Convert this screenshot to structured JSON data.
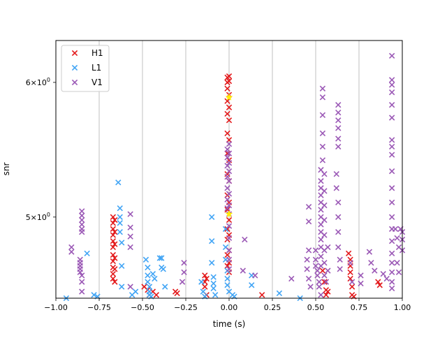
{
  "chart_data": {
    "type": "scatter",
    "xlabel": "time (s)",
    "ylabel": "snr",
    "xlim": [
      -1.0,
      1.0
    ],
    "ylim": [
      4.48,
      6.35
    ],
    "yscale": "log",
    "grid": "vertical",
    "legend_position": "upper-left",
    "x_ticks": [
      -1.0,
      -0.75,
      -0.5,
      -0.25,
      0.0,
      0.25,
      0.5,
      0.75,
      1.0
    ],
    "x_tick_labels": [
      "−1.00",
      "−0.75",
      "−0.50",
      "−0.25",
      "0.00",
      "0.25",
      "0.50",
      "0.75",
      "1.00"
    ],
    "y_ticks": [
      {
        "value": 6.0,
        "base": "6",
        "exp": "0"
      },
      {
        "value": 5.0,
        "base": "5",
        "exp": "0"
      }
    ],
    "y_tick_times": "×10",
    "marker": "×",
    "series": [
      {
        "name": "H1",
        "color": "#e31a1c",
        "points": [
          [
            -0.67,
            5.0
          ],
          [
            -0.67,
            4.96
          ],
          [
            -0.67,
            4.92
          ],
          [
            -0.67,
            4.88
          ],
          [
            -0.67,
            4.84
          ],
          [
            -0.67,
            4.8
          ],
          [
            -0.67,
            4.75
          ],
          [
            -0.67,
            4.71
          ],
          [
            -0.67,
            4.67
          ],
          [
            -0.67,
            4.63
          ],
          [
            -0.67,
            4.6
          ],
          [
            -0.66,
            4.98
          ],
          [
            -0.66,
            4.9
          ],
          [
            -0.66,
            4.82
          ],
          [
            -0.66,
            4.73
          ],
          [
            -0.66,
            4.66
          ],
          [
            -0.66,
            4.58
          ],
          [
            -0.49,
            4.55
          ],
          [
            -0.47,
            4.53
          ],
          [
            -0.46,
            4.5
          ],
          [
            -0.44,
            4.52
          ],
          [
            -0.42,
            4.5
          ],
          [
            -0.31,
            4.52
          ],
          [
            -0.3,
            4.51
          ],
          [
            -0.14,
            4.62
          ],
          [
            -0.14,
            4.58
          ],
          [
            -0.14,
            4.55
          ],
          [
            -0.13,
            4.5
          ],
          [
            -0.13,
            4.6
          ],
          [
            -0.01,
            6.04
          ],
          [
            -0.01,
            6.0
          ],
          [
            -0.01,
            5.95
          ],
          [
            -0.01,
            5.85
          ],
          [
            -0.01,
            5.75
          ],
          [
            -0.01,
            5.6
          ],
          [
            -0.01,
            5.45
          ],
          [
            -0.01,
            5.3
          ],
          [
            -0.01,
            5.15
          ],
          [
            -0.01,
            5.05
          ],
          [
            -0.01,
            4.92
          ],
          [
            -0.01,
            4.85
          ],
          [
            -0.01,
            4.75
          ],
          [
            -0.01,
            4.68
          ],
          [
            0.0,
            6.05
          ],
          [
            0.0,
            6.01
          ],
          [
            0.0,
            5.9
          ],
          [
            0.0,
            5.8
          ],
          [
            0.0,
            5.7
          ],
          [
            0.0,
            5.55
          ],
          [
            0.0,
            5.4
          ],
          [
            0.0,
            5.25
          ],
          [
            0.0,
            5.1
          ],
          [
            0.0,
            4.98
          ],
          [
            0.0,
            4.88
          ],
          [
            0.0,
            4.78
          ],
          [
            0.0,
            4.7
          ],
          [
            0.0,
            4.64
          ],
          [
            0.19,
            4.5
          ],
          [
            0.54,
            4.65
          ],
          [
            0.55,
            4.58
          ],
          [
            0.56,
            4.53
          ],
          [
            0.56,
            4.5
          ],
          [
            0.57,
            4.52
          ],
          [
            0.69,
            4.76
          ],
          [
            0.7,
            4.72
          ],
          [
            0.7,
            4.68
          ],
          [
            0.7,
            4.64
          ],
          [
            0.7,
            4.6
          ],
          [
            0.71,
            4.55
          ],
          [
            0.71,
            4.5
          ],
          [
            0.72,
            4.49
          ],
          [
            0.86,
            4.58
          ],
          [
            0.87,
            4.56
          ]
        ]
      },
      {
        "name": "L1",
        "color": "#42a5f5",
        "points": [
          [
            -0.94,
            4.48
          ],
          [
            -0.82,
            4.76
          ],
          [
            -0.78,
            4.5
          ],
          [
            -0.76,
            4.49
          ],
          [
            -0.64,
            5.24
          ],
          [
            -0.63,
            5.06
          ],
          [
            -0.63,
            5.0
          ],
          [
            -0.63,
            4.96
          ],
          [
            -0.63,
            4.9
          ],
          [
            -0.62,
            4.83
          ],
          [
            -0.62,
            4.68
          ],
          [
            -0.62,
            4.55
          ],
          [
            -0.56,
            4.5
          ],
          [
            -0.54,
            4.52
          ],
          [
            -0.48,
            4.72
          ],
          [
            -0.47,
            4.67
          ],
          [
            -0.47,
            4.62
          ],
          [
            -0.47,
            4.58
          ],
          [
            -0.46,
            4.55
          ],
          [
            -0.46,
            4.52
          ],
          [
            -0.46,
            4.5
          ],
          [
            -0.45,
            4.49
          ],
          [
            -0.44,
            4.63
          ],
          [
            -0.43,
            4.6
          ],
          [
            -0.4,
            4.73
          ],
          [
            -0.39,
            4.73
          ],
          [
            -0.39,
            4.67
          ],
          [
            -0.38,
            4.66
          ],
          [
            -0.37,
            4.55
          ],
          [
            -0.16,
            4.58
          ],
          [
            -0.15,
            4.52
          ],
          [
            -0.14,
            4.49
          ],
          [
            -0.1,
            5.0
          ],
          [
            -0.1,
            4.84
          ],
          [
            -0.1,
            4.7
          ],
          [
            -0.09,
            4.61
          ],
          [
            -0.09,
            4.57
          ],
          [
            -0.09,
            4.54
          ],
          [
            -0.08,
            4.5
          ],
          [
            -0.02,
            4.92
          ],
          [
            -0.02,
            4.8
          ],
          [
            -0.02,
            4.72
          ],
          [
            -0.01,
            4.65
          ],
          [
            -0.01,
            4.6
          ],
          [
            -0.01,
            4.56
          ],
          [
            0.0,
            4.52
          ],
          [
            0.02,
            4.5
          ],
          [
            0.03,
            4.49
          ],
          [
            0.13,
            4.62
          ],
          [
            0.13,
            4.56
          ],
          [
            0.29,
            4.51
          ],
          [
            0.41,
            4.48
          ]
        ]
      },
      {
        "name": "V1",
        "color": "#9b59b6",
        "points": [
          [
            -0.91,
            4.8
          ],
          [
            -0.91,
            4.77
          ],
          [
            -0.85,
            5.04
          ],
          [
            -0.85,
            5.01
          ],
          [
            -0.85,
            4.98
          ],
          [
            -0.85,
            4.95
          ],
          [
            -0.85,
            4.92
          ],
          [
            -0.85,
            4.9
          ],
          [
            -0.86,
            4.72
          ],
          [
            -0.86,
            4.7
          ],
          [
            -0.86,
            4.68
          ],
          [
            -0.86,
            4.66
          ],
          [
            -0.86,
            4.64
          ],
          [
            -0.85,
            4.62
          ],
          [
            -0.85,
            4.58
          ],
          [
            -0.85,
            4.52
          ],
          [
            -0.57,
            5.02
          ],
          [
            -0.57,
            4.93
          ],
          [
            -0.57,
            4.87
          ],
          [
            -0.57,
            4.8
          ],
          [
            -0.57,
            4.55
          ],
          [
            -0.26,
            4.7
          ],
          [
            -0.26,
            4.64
          ],
          [
            -0.27,
            4.58
          ],
          [
            -0.01,
            5.48
          ],
          [
            -0.01,
            5.42
          ],
          [
            -0.01,
            5.36
          ],
          [
            -0.01,
            5.28
          ],
          [
            -0.01,
            5.2
          ],
          [
            -0.01,
            5.12
          ],
          [
            -0.01,
            5.06
          ],
          [
            0.0,
            5.52
          ],
          [
            0.0,
            5.45
          ],
          [
            0.0,
            5.38
          ],
          [
            0.0,
            5.32
          ],
          [
            0.0,
            5.25
          ],
          [
            0.0,
            5.16
          ],
          [
            0.0,
            5.08
          ],
          [
            0.0,
            5.02
          ],
          [
            0.0,
            4.94
          ],
          [
            0.0,
            4.86
          ],
          [
            0.0,
            4.78
          ],
          [
            0.0,
            4.72
          ],
          [
            0.0,
            4.66
          ],
          [
            0.09,
            4.85
          ],
          [
            0.08,
            4.65
          ],
          [
            0.15,
            4.62
          ],
          [
            0.36,
            4.6
          ],
          [
            0.46,
            5.07
          ],
          [
            0.46,
            4.97
          ],
          [
            0.46,
            4.78
          ],
          [
            0.45,
            4.72
          ],
          [
            0.45,
            4.66
          ],
          [
            0.46,
            4.6
          ],
          [
            0.47,
            4.55
          ],
          [
            0.5,
            4.78
          ],
          [
            0.5,
            4.72
          ],
          [
            0.5,
            4.68
          ],
          [
            0.51,
            4.65
          ],
          [
            0.51,
            4.62
          ],
          [
            0.52,
            4.58
          ],
          [
            0.52,
            4.55
          ],
          [
            0.53,
            4.5
          ],
          [
            0.53,
            5.33
          ],
          [
            0.53,
            5.25
          ],
          [
            0.53,
            5.2
          ],
          [
            0.53,
            5.15
          ],
          [
            0.53,
            5.1
          ],
          [
            0.53,
            5.05
          ],
          [
            0.53,
            5.0
          ],
          [
            0.53,
            4.95
          ],
          [
            0.53,
            4.9
          ],
          [
            0.53,
            4.85
          ],
          [
            0.53,
            4.8
          ],
          [
            0.53,
            4.74
          ],
          [
            0.53,
            4.68
          ],
          [
            0.54,
            5.95
          ],
          [
            0.54,
            5.88
          ],
          [
            0.54,
            5.74
          ],
          [
            0.54,
            5.6
          ],
          [
            0.54,
            5.5
          ],
          [
            0.54,
            5.4
          ],
          [
            0.55,
            5.3
          ],
          [
            0.55,
            5.18
          ],
          [
            0.55,
            5.08
          ],
          [
            0.55,
            4.98
          ],
          [
            0.55,
            4.88
          ],
          [
            0.55,
            4.78
          ],
          [
            0.55,
            4.7
          ],
          [
            0.55,
            4.62
          ],
          [
            0.56,
            4.58
          ],
          [
            0.57,
            4.8
          ],
          [
            0.57,
            4.65
          ],
          [
            0.63,
            5.82
          ],
          [
            0.63,
            5.76
          ],
          [
            0.63,
            5.7
          ],
          [
            0.63,
            5.64
          ],
          [
            0.63,
            5.56
          ],
          [
            0.63,
            5.5
          ],
          [
            0.62,
            5.3
          ],
          [
            0.62,
            5.2
          ],
          [
            0.63,
            5.1
          ],
          [
            0.63,
            5.0
          ],
          [
            0.63,
            4.9
          ],
          [
            0.63,
            4.8
          ],
          [
            0.64,
            4.72
          ],
          [
            0.64,
            4.66
          ],
          [
            0.7,
            4.7
          ],
          [
            0.71,
            4.58
          ],
          [
            0.76,
            4.62
          ],
          [
            0.76,
            4.57
          ],
          [
            0.81,
            4.77
          ],
          [
            0.82,
            4.7
          ],
          [
            0.84,
            4.65
          ],
          [
            0.89,
            4.63
          ],
          [
            0.91,
            4.6
          ],
          [
            0.94,
            6.22
          ],
          [
            0.94,
            6.02
          ],
          [
            0.94,
            5.98
          ],
          [
            0.94,
            5.92
          ],
          [
            0.94,
            5.82
          ],
          [
            0.94,
            5.72
          ],
          [
            0.94,
            5.55
          ],
          [
            0.94,
            5.5
          ],
          [
            0.94,
            5.44
          ],
          [
            0.94,
            5.32
          ],
          [
            0.94,
            5.2
          ],
          [
            0.94,
            5.1
          ],
          [
            0.94,
            5.0
          ],
          [
            0.94,
            4.92
          ],
          [
            0.94,
            4.84
          ],
          [
            0.94,
            4.76
          ],
          [
            0.94,
            4.7
          ],
          [
            0.94,
            4.64
          ],
          [
            0.94,
            4.58
          ],
          [
            0.94,
            4.54
          ],
          [
            0.96,
            4.92
          ],
          [
            0.97,
            4.86
          ],
          [
            0.98,
            4.8
          ],
          [
            0.99,
            4.92
          ],
          [
            1.0,
            4.9
          ],
          [
            1.0,
            4.85
          ],
          [
            1.0,
            4.78
          ],
          [
            0.97,
            4.7
          ],
          [
            0.98,
            4.64
          ]
        ]
      }
    ],
    "highlight_points": {
      "color": "#ffee00",
      "points": [
        [
          0.0,
          5.88
        ],
        [
          0.0,
          5.02
        ]
      ]
    }
  }
}
